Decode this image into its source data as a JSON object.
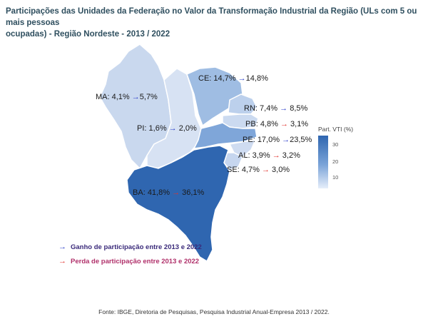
{
  "title_line1": "Participações das Unidades da Federação no Valor da Transformação Industrial da Região (ULs com 5 ou mais pessoas",
  "title_line2": "ocupadas) - Região Nordeste - 2013 / 2022",
  "regions": [
    {
      "state": "MA",
      "value_2013": "4,1%",
      "value_2022": "5,7%",
      "trend": "gain",
      "color": "#c9d8ee"
    },
    {
      "state": "PI",
      "value_2013": "1,6%",
      "value_2022": "2,0%",
      "trend": "gain",
      "color": "#d7e2f3"
    },
    {
      "state": "CE",
      "value_2013": "14,7%",
      "value_2022": "14,8%",
      "trend": "gain",
      "color": "#9fbde3"
    },
    {
      "state": "RN",
      "value_2013": "7,4%",
      "value_2022": "8,5%",
      "trend": "gain",
      "color": "#bcd0ec"
    },
    {
      "state": "PB",
      "value_2013": "4,8%",
      "value_2022": "3,1%",
      "trend": "loss",
      "color": "#cbdaf0"
    },
    {
      "state": "PE",
      "value_2013": "17,0%",
      "value_2022": "23,5%",
      "trend": "gain",
      "color": "#7fa6d9"
    },
    {
      "state": "AL",
      "value_2013": "3,9%",
      "value_2022": "3,2%",
      "trend": "loss",
      "color": "#cfdcf1"
    },
    {
      "state": "SE",
      "value_2013": "4,7%",
      "value_2022": "3,0%",
      "trend": "loss",
      "color": "#c6d6ef"
    },
    {
      "state": "BA",
      "value_2013": "41,8%",
      "value_2022": "36,1%",
      "trend": "loss",
      "color": "#2f66b0"
    }
  ],
  "separator": ":",
  "arrow_glyph": "→",
  "legend": {
    "gain_label": "Ganho de participação entre 2013 e 2022",
    "loss_label": "Perda de participação entre 2013 e 2022",
    "gain_color": "#2a3cc8",
    "loss_color": "#e0322c"
  },
  "scale": {
    "title": "Part. VTI (%)",
    "ticks": [
      "30",
      "20",
      "10"
    ]
  },
  "source": "Fonte: IBGE, Diretoria de Pesquisas, Pesquisa Industrial Anual-Empresa 2013 / 2022."
}
